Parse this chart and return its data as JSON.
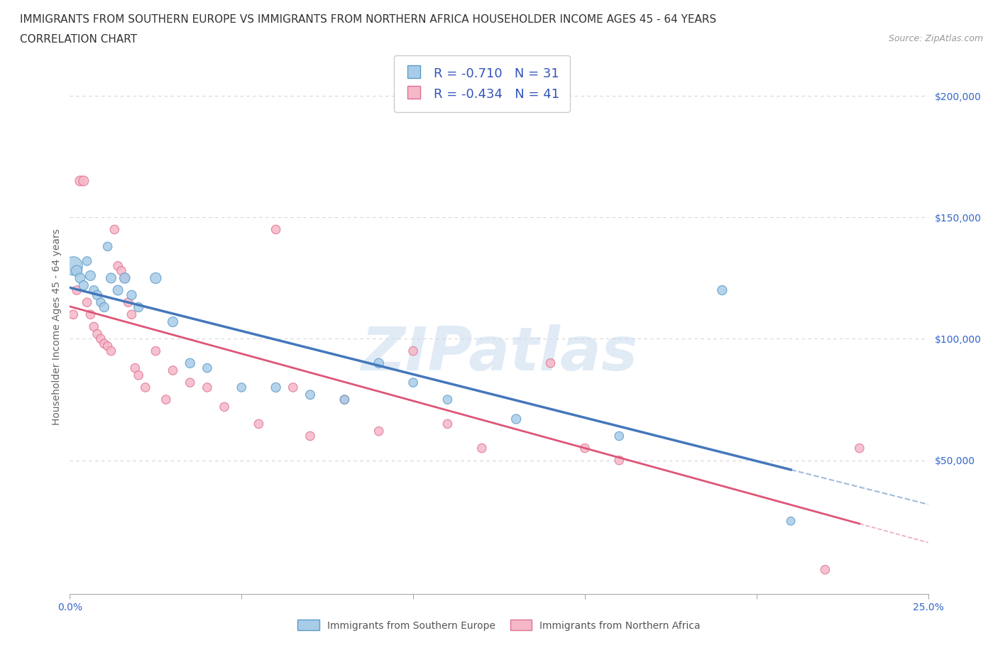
{
  "title_line1": "IMMIGRANTS FROM SOUTHERN EUROPE VS IMMIGRANTS FROM NORTHERN AFRICA HOUSEHOLDER INCOME AGES 45 - 64 YEARS",
  "title_line2": "CORRELATION CHART",
  "source_text": "Source: ZipAtlas.com",
  "ylabel": "Householder Income Ages 45 - 64 years",
  "xlim": [
    0.0,
    0.25
  ],
  "ylim": [
    -5000,
    215000
  ],
  "ytick_values": [
    50000,
    100000,
    150000,
    200000
  ],
  "ytick_labels": [
    "$50,000",
    "$100,000",
    "$150,000",
    "$200,000"
  ],
  "watermark": "ZIPatlas",
  "series1_color": "#a8cce8",
  "series1_edge": "#5b9bc8",
  "series2_color": "#f5b8c8",
  "series2_edge": "#e07090",
  "line1_color": "#4477bb",
  "line2_color": "#dd5577",
  "R1": -0.71,
  "N1": 31,
  "R2": -0.434,
  "N2": 41,
  "legend1_label": "Immigrants from Southern Europe",
  "legend2_label": "Immigrants from Northern Africa",
  "background_color": "#ffffff",
  "grid_color": "#cccccc",
  "title_fontsize": 11,
  "axis_label_fontsize": 10,
  "tick_fontsize": 10,
  "se_x": [
    0.001,
    0.002,
    0.003,
    0.004,
    0.005,
    0.006,
    0.007,
    0.008,
    0.009,
    0.01,
    0.011,
    0.012,
    0.014,
    0.016,
    0.018,
    0.02,
    0.025,
    0.03,
    0.035,
    0.04,
    0.05,
    0.06,
    0.07,
    0.08,
    0.09,
    0.1,
    0.11,
    0.13,
    0.16,
    0.19,
    0.21
  ],
  "se_y": [
    130000,
    128000,
    125000,
    122000,
    132000,
    126000,
    120000,
    118000,
    115000,
    113000,
    138000,
    125000,
    120000,
    125000,
    118000,
    113000,
    125000,
    107000,
    90000,
    88000,
    80000,
    80000,
    77000,
    75000,
    90000,
    82000,
    75000,
    67000,
    60000,
    120000,
    25000
  ],
  "na_x": [
    0.001,
    0.002,
    0.003,
    0.004,
    0.005,
    0.006,
    0.007,
    0.008,
    0.009,
    0.01,
    0.011,
    0.012,
    0.013,
    0.014,
    0.015,
    0.016,
    0.017,
    0.018,
    0.019,
    0.02,
    0.022,
    0.025,
    0.028,
    0.03,
    0.035,
    0.04,
    0.045,
    0.055,
    0.06,
    0.065,
    0.07,
    0.08,
    0.09,
    0.1,
    0.11,
    0.12,
    0.14,
    0.15,
    0.16,
    0.22,
    0.23
  ],
  "na_y": [
    110000,
    120000,
    165000,
    165000,
    115000,
    110000,
    105000,
    102000,
    100000,
    98000,
    97000,
    95000,
    145000,
    130000,
    128000,
    125000,
    115000,
    110000,
    88000,
    85000,
    80000,
    95000,
    75000,
    87000,
    82000,
    80000,
    72000,
    65000,
    145000,
    80000,
    60000,
    75000,
    62000,
    95000,
    65000,
    55000,
    90000,
    55000,
    50000,
    5000,
    55000
  ],
  "se_sizes": [
    350,
    120,
    100,
    90,
    80,
    100,
    85,
    90,
    80,
    90,
    80,
    100,
    100,
    110,
    90,
    90,
    120,
    100,
    90,
    80,
    80,
    90,
    85,
    80,
    90,
    80,
    80,
    90,
    80,
    90,
    70
  ],
  "na_sizes": [
    80,
    80,
    100,
    100,
    80,
    80,
    80,
    80,
    80,
    80,
    80,
    80,
    80,
    80,
    80,
    80,
    80,
    80,
    80,
    80,
    80,
    80,
    80,
    80,
    80,
    80,
    80,
    80,
    80,
    80,
    80,
    80,
    80,
    80,
    80,
    80,
    80,
    80,
    80,
    80,
    80
  ]
}
